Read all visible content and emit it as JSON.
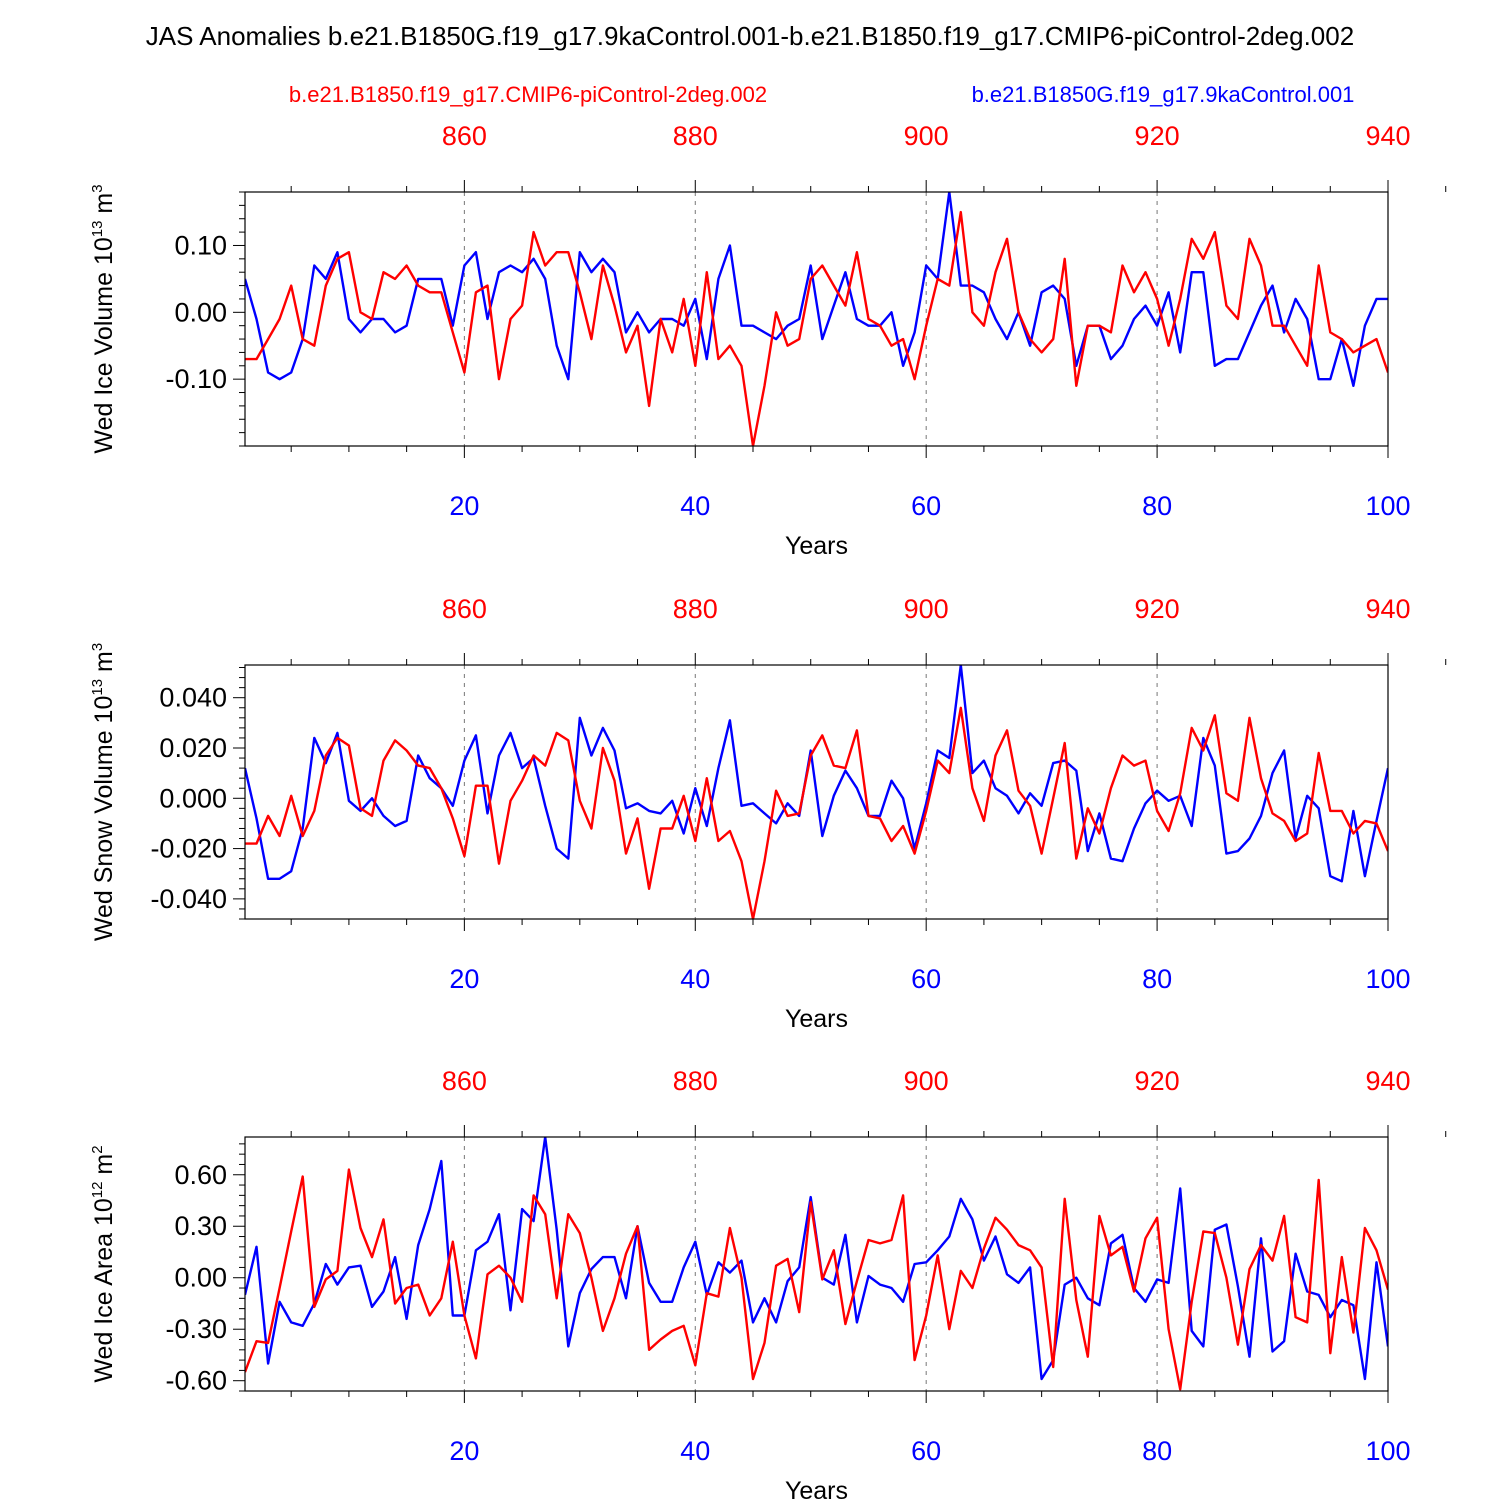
{
  "title": "JAS Anomalies b.e21.B1850G.f19_g17.9kaControl.001-b.e21.B1850.f19_g17.CMIP6-piControl-2deg.002",
  "legend": {
    "red_label": "b.e21.B1850.f19_g17.CMIP6-piControl-2deg.002",
    "blue_label": "b.e21.B1850G.f19_g17.9kaControl.001"
  },
  "colors": {
    "red": "#ff0000",
    "blue": "#0000ff"
  },
  "chart_data": [
    {
      "type": "line",
      "ylabel": "Wed Ice Volume 10",
      "ylabel_exp": "13",
      "ylabel_unit": " m",
      "ylabel_unit_exp": "3",
      "xlabel": "Years",
      "xlim": [
        1,
        100
      ],
      "ylim": [
        -0.2,
        0.18
      ],
      "yticks": [
        -0.1,
        0.0,
        0.1
      ],
      "ytick_labels": [
        "-0.10",
        "0.00",
        "0.10"
      ],
      "xticks": [
        20,
        40,
        60,
        80,
        100
      ],
      "xtick_labels": [
        "20",
        "40",
        "60",
        "80",
        "100"
      ],
      "top_xticks": [
        860,
        880,
        900,
        920,
        940
      ],
      "top_xtick_labels": [
        "860",
        "880",
        "900",
        "920",
        "940"
      ],
      "series": [
        {
          "name": "b.e21.B1850G.f19_g17.9kaControl.001",
          "color": "blue",
          "values": [
            0.05,
            -0.01,
            -0.09,
            -0.1,
            -0.09,
            -0.04,
            0.07,
            0.05,
            0.09,
            -0.01,
            -0.03,
            -0.01,
            -0.01,
            -0.03,
            -0.02,
            0.05,
            0.05,
            0.05,
            -0.02,
            0.07,
            0.09,
            -0.01,
            0.06,
            0.07,
            0.06,
            0.08,
            0.05,
            -0.05,
            -0.1,
            0.09,
            0.06,
            0.08,
            0.06,
            -0.03,
            0.0,
            -0.03,
            -0.01,
            -0.01,
            -0.02,
            0.02,
            -0.07,
            0.05,
            0.1,
            -0.02,
            -0.02,
            -0.03,
            -0.04,
            -0.02,
            -0.01,
            0.07,
            -0.04,
            0.01,
            0.06,
            -0.01,
            -0.02,
            -0.02,
            0.0,
            -0.08,
            -0.03,
            0.07,
            0.05,
            0.18,
            0.04,
            0.04,
            0.03,
            -0.01,
            -0.04,
            0.0,
            -0.05,
            0.03,
            0.04,
            0.02,
            -0.08,
            -0.02,
            -0.02,
            -0.07,
            -0.05,
            -0.01,
            0.01,
            -0.02,
            0.03,
            -0.06,
            0.06,
            0.06,
            -0.08,
            -0.07,
            -0.07,
            -0.03,
            0.01,
            0.04,
            -0.03,
            0.02,
            -0.01,
            -0.1,
            -0.1,
            -0.04,
            -0.11,
            -0.02,
            0.02,
            0.02
          ]
        },
        {
          "name": "b.e21.B1850.f19_g17.CMIP6-piControl-2deg.002",
          "color": "red",
          "values": [
            -0.07,
            -0.07,
            -0.04,
            -0.01,
            0.04,
            -0.04,
            -0.05,
            0.04,
            0.08,
            0.09,
            0.0,
            -0.01,
            0.06,
            0.05,
            0.07,
            0.04,
            0.03,
            0.03,
            -0.03,
            -0.09,
            0.03,
            0.04,
            -0.1,
            -0.01,
            0.01,
            0.12,
            0.07,
            0.09,
            0.09,
            0.03,
            -0.04,
            0.07,
            0.01,
            -0.06,
            -0.02,
            -0.14,
            -0.01,
            -0.06,
            0.02,
            -0.08,
            0.06,
            -0.07,
            -0.05,
            -0.08,
            -0.2,
            -0.11,
            0.0,
            -0.05,
            -0.04,
            0.05,
            0.07,
            0.04,
            0.01,
            0.09,
            -0.01,
            -0.02,
            -0.05,
            -0.04,
            -0.1,
            -0.02,
            0.05,
            0.04,
            0.15,
            0.0,
            -0.02,
            0.06,
            0.11,
            0.0,
            -0.04,
            -0.06,
            -0.04,
            0.08,
            -0.11,
            -0.02,
            -0.02,
            -0.03,
            0.07,
            0.03,
            0.06,
            0.02,
            -0.05,
            0.02,
            0.11,
            0.08,
            0.12,
            0.01,
            -0.01,
            0.11,
            0.07,
            -0.02,
            -0.02,
            -0.05,
            -0.08,
            0.07,
            -0.03,
            -0.04,
            -0.06,
            -0.05,
            -0.04,
            -0.09
          ]
        }
      ]
    },
    {
      "type": "line",
      "ylabel": "Wed Snow Volume 10",
      "ylabel_exp": "13",
      "ylabel_unit": " m",
      "ylabel_unit_exp": "3",
      "xlabel": "Years",
      "xlim": [
        1,
        100
      ],
      "ylim": [
        -0.048,
        0.053
      ],
      "yticks": [
        -0.04,
        -0.02,
        0.0,
        0.02,
        0.04
      ],
      "ytick_labels": [
        "-0.040",
        "-0.020",
        "0.000",
        "0.020",
        "0.040"
      ],
      "xticks": [
        20,
        40,
        60,
        80,
        100
      ],
      "xtick_labels": [
        "20",
        "40",
        "60",
        "80",
        "100"
      ],
      "top_xticks": [
        860,
        880,
        900,
        920,
        940
      ],
      "top_xtick_labels": [
        "860",
        "880",
        "900",
        "920",
        "940"
      ],
      "series": [
        {
          "name": "b.e21.B1850G.f19_g17.9kaControl.001",
          "color": "blue",
          "values": [
            0.012,
            -0.008,
            -0.032,
            -0.032,
            -0.029,
            -0.012,
            0.024,
            0.014,
            0.026,
            -0.001,
            -0.005,
            0.0,
            -0.007,
            -0.011,
            -0.009,
            0.017,
            0.008,
            0.004,
            -0.003,
            0.015,
            0.025,
            -0.006,
            0.017,
            0.026,
            0.012,
            0.016,
            -0.003,
            -0.02,
            -0.024,
            0.032,
            0.017,
            0.028,
            0.019,
            -0.004,
            -0.002,
            -0.005,
            -0.006,
            -0.001,
            -0.014,
            0.004,
            -0.011,
            0.012,
            0.031,
            -0.003,
            -0.002,
            -0.006,
            -0.01,
            -0.002,
            -0.007,
            0.019,
            -0.015,
            0.001,
            0.011,
            0.004,
            -0.007,
            -0.007,
            0.007,
            0.0,
            -0.02,
            -0.002,
            0.019,
            0.016,
            0.053,
            0.01,
            0.015,
            0.004,
            0.001,
            -0.006,
            0.002,
            -0.003,
            0.014,
            0.015,
            0.011,
            -0.021,
            -0.006,
            -0.024,
            -0.025,
            -0.012,
            -0.002,
            0.003,
            -0.001,
            0.001,
            -0.011,
            0.024,
            0.013,
            -0.022,
            -0.021,
            -0.016,
            -0.007,
            0.01,
            0.019,
            -0.016,
            0.001,
            -0.004,
            -0.031,
            -0.033,
            -0.005,
            -0.031,
            -0.009,
            0.012
          ]
        },
        {
          "name": "b.e21.B1850.f19_g17.CMIP6-piControl-2deg.002",
          "color": "red",
          "values": [
            -0.018,
            -0.018,
            -0.007,
            -0.015,
            0.001,
            -0.015,
            -0.005,
            0.017,
            0.024,
            0.021,
            -0.004,
            -0.007,
            0.015,
            0.023,
            0.019,
            0.013,
            0.012,
            0.004,
            -0.008,
            -0.023,
            0.005,
            0.005,
            -0.026,
            -0.001,
            0.007,
            0.017,
            0.013,
            0.026,
            0.023,
            -0.001,
            -0.012,
            0.02,
            0.007,
            -0.022,
            -0.008,
            -0.036,
            -0.012,
            -0.012,
            0.001,
            -0.017,
            0.008,
            -0.017,
            -0.013,
            -0.025,
            -0.048,
            -0.025,
            0.003,
            -0.007,
            -0.006,
            0.017,
            0.025,
            0.013,
            0.012,
            0.027,
            -0.007,
            -0.008,
            -0.017,
            -0.011,
            -0.022,
            -0.005,
            0.015,
            0.01,
            0.036,
            0.004,
            -0.009,
            0.017,
            0.027,
            0.003,
            -0.003,
            -0.022,
            0.0,
            0.022,
            -0.024,
            -0.004,
            -0.014,
            0.004,
            0.017,
            0.013,
            0.015,
            -0.005,
            -0.013,
            0.002,
            0.028,
            0.019,
            0.033,
            0.002,
            -0.001,
            0.032,
            0.008,
            -0.006,
            -0.009,
            -0.017,
            -0.014,
            0.018,
            -0.005,
            -0.005,
            -0.014,
            -0.009,
            -0.01,
            -0.021
          ]
        }
      ]
    },
    {
      "type": "line",
      "ylabel": "Wed Ice Area 10",
      "ylabel_exp": "12",
      "ylabel_unit": " m",
      "ylabel_unit_exp": "2",
      "xlabel": "Years",
      "xlim": [
        1,
        100
      ],
      "ylim": [
        -0.66,
        0.82
      ],
      "yticks": [
        -0.6,
        -0.3,
        0.0,
        0.3,
        0.6
      ],
      "ytick_labels": [
        "-0.60",
        "-0.30",
        "0.00",
        "0.30",
        "0.60"
      ],
      "xticks": [
        20,
        40,
        60,
        80,
        100
      ],
      "xtick_labels": [
        "20",
        "40",
        "60",
        "80",
        "100"
      ],
      "top_xticks": [
        860,
        880,
        900,
        920,
        940
      ],
      "top_xtick_labels": [
        "860",
        "880",
        "900",
        "920",
        "940"
      ],
      "series": [
        {
          "name": "b.e21.B1850G.f19_g17.9kaControl.001",
          "color": "blue",
          "values": [
            -0.1,
            0.18,
            -0.5,
            -0.14,
            -0.26,
            -0.28,
            -0.15,
            0.08,
            -0.04,
            0.06,
            0.07,
            -0.17,
            -0.08,
            0.12,
            -0.24,
            0.19,
            0.4,
            0.68,
            -0.22,
            -0.22,
            0.16,
            0.21,
            0.37,
            -0.19,
            0.4,
            0.33,
            0.82,
            0.28,
            -0.4,
            -0.09,
            0.05,
            0.12,
            0.12,
            -0.12,
            0.3,
            -0.03,
            -0.14,
            -0.14,
            0.06,
            0.21,
            -0.1,
            0.09,
            0.03,
            0.1,
            -0.26,
            -0.12,
            -0.26,
            -0.02,
            0.06,
            0.47,
            0.0,
            -0.04,
            0.25,
            -0.26,
            0.01,
            -0.04,
            -0.06,
            -0.14,
            0.08,
            0.09,
            0.16,
            0.24,
            0.46,
            0.34,
            0.1,
            0.24,
            0.02,
            -0.03,
            0.06,
            -0.59,
            -0.48,
            -0.04,
            0.0,
            -0.12,
            -0.16,
            0.2,
            0.25,
            -0.06,
            -0.14,
            -0.01,
            -0.03,
            0.52,
            -0.31,
            -0.4,
            0.28,
            0.31,
            -0.05,
            -0.46,
            0.23,
            -0.43,
            -0.37,
            0.14,
            -0.08,
            -0.1,
            -0.23,
            -0.13,
            -0.16,
            -0.59,
            0.09,
            -0.4
          ]
        },
        {
          "name": "b.e21.B1850.f19_g17.CMIP6-piControl-2deg.002",
          "color": "red",
          "values": [
            -0.55,
            -0.37,
            -0.38,
            -0.06,
            0.27,
            0.59,
            -0.17,
            -0.01,
            0.04,
            0.63,
            0.29,
            0.12,
            0.34,
            -0.15,
            -0.06,
            -0.04,
            -0.22,
            -0.12,
            0.21,
            -0.22,
            -0.47,
            0.02,
            0.07,
            0.0,
            -0.14,
            0.48,
            0.37,
            -0.12,
            0.37,
            0.26,
            0.0,
            -0.31,
            -0.12,
            0.14,
            0.3,
            -0.42,
            -0.36,
            -0.31,
            -0.28,
            -0.51,
            -0.09,
            -0.11,
            0.29,
            0.0,
            -0.59,
            -0.38,
            0.07,
            0.11,
            -0.2,
            0.44,
            -0.01,
            0.16,
            -0.27,
            -0.02,
            0.22,
            0.2,
            0.22,
            0.48,
            -0.48,
            -0.22,
            0.13,
            -0.3,
            0.04,
            -0.06,
            0.17,
            0.35,
            0.28,
            0.19,
            0.16,
            0.06,
            -0.52,
            0.46,
            -0.13,
            -0.46,
            0.36,
            0.13,
            0.18,
            -0.08,
            0.23,
            0.35,
            -0.3,
            -0.65,
            -0.14,
            0.27,
            0.26,
            0.0,
            -0.39,
            0.05,
            0.19,
            0.1,
            0.36,
            -0.23,
            -0.26,
            0.57,
            -0.44,
            0.12,
            -0.32,
            0.29,
            0.16,
            -0.07
          ]
        }
      ]
    }
  ]
}
